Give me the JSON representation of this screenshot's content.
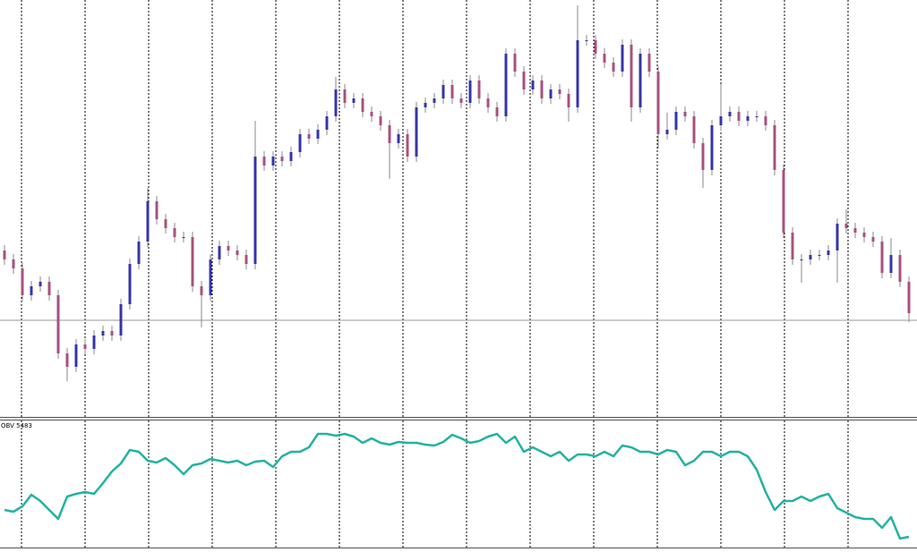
{
  "chart_data": [
    {
      "type": "candlestick",
      "xlim": [
        -0.5,
        101.9
      ],
      "xgrid": [
        1.9,
        9,
        16.1,
        23.2,
        30.3,
        37.4,
        44.5,
        51.6,
        58.7,
        65.8,
        72.9,
        80,
        87.1,
        94.2
      ],
      "ylim": [
        0,
        466
      ],
      "bid_line": 108,
      "up_color": "#3535a8",
      "down_color": "#a8507f",
      "wick_color": "#8a8a8a",
      "open": [
        186,
        176,
        166,
        136,
        146,
        151,
        136,
        71,
        56,
        81,
        76,
        91,
        96,
        91,
        126,
        171,
        196,
        241,
        221,
        211,
        201,
        201,
        146,
        136,
        176,
        191,
        186,
        181,
        171,
        291,
        281,
        291,
        286,
        296,
        316,
        311,
        321,
        336,
        366,
        351,
        356,
        341,
        336,
        326,
        306,
        316,
        291,
        346,
        351,
        356,
        371,
        356,
        351,
        376,
        356,
        346,
        336,
        406,
        386,
        366,
        376,
        356,
        366,
        361,
        346,
        421,
        421,
        406,
        396,
        386,
        416,
        346,
        406,
        386,
        316,
        321,
        341,
        336,
        306,
        276,
        326,
        336,
        341,
        331,
        336,
        336,
        326,
        276,
        206,
        176,
        176,
        181,
        181,
        186,
        216,
        211,
        206,
        201,
        196,
        161,
        181,
        151
      ],
      "high": [
        192,
        182,
        172,
        152,
        157,
        157,
        142,
        77,
        87,
        87,
        97,
        102,
        102,
        132,
        177,
        202,
        256,
        247,
        227,
        217,
        207,
        207,
        152,
        182,
        197,
        197,
        192,
        187,
        331,
        297,
        297,
        297,
        302,
        322,
        322,
        327,
        342,
        380,
        372,
        362,
        362,
        347,
        342,
        332,
        322,
        322,
        352,
        357,
        362,
        377,
        377,
        362,
        382,
        382,
        362,
        352,
        412,
        412,
        392,
        382,
        382,
        372,
        372,
        367,
        460,
        427,
        427,
        412,
        402,
        422,
        422,
        412,
        412,
        392,
        340,
        347,
        347,
        342,
        312,
        332,
        372,
        347,
        347,
        342,
        342,
        342,
        332,
        282,
        212,
        182,
        187,
        187,
        192,
        222,
        232,
        217,
        212,
        207,
        202,
        200,
        187,
        157
      ],
      "low": [
        170,
        160,
        130,
        130,
        140,
        130,
        65,
        40,
        50,
        70,
        70,
        85,
        85,
        85,
        120,
        165,
        190,
        215,
        205,
        195,
        195,
        140,
        100,
        130,
        170,
        180,
        175,
        165,
        165,
        275,
        275,
        280,
        280,
        290,
        305,
        305,
        315,
        330,
        345,
        345,
        335,
        330,
        320,
        266,
        300,
        285,
        285,
        340,
        345,
        350,
        350,
        345,
        345,
        350,
        340,
        330,
        330,
        380,
        360,
        360,
        350,
        350,
        355,
        330,
        340,
        415,
        400,
        390,
        380,
        380,
        330,
        340,
        380,
        300,
        310,
        315,
        330,
        300,
        256,
        270,
        320,
        330,
        325,
        325,
        330,
        320,
        270,
        200,
        170,
        150,
        170,
        175,
        175,
        150,
        205,
        200,
        195,
        190,
        155,
        155,
        145,
        106
      ],
      "close": [
        176,
        166,
        136,
        146,
        151,
        136,
        71,
        56,
        81,
        76,
        91,
        96,
        91,
        126,
        171,
        196,
        241,
        221,
        211,
        201,
        201,
        146,
        136,
        176,
        191,
        186,
        181,
        171,
        291,
        281,
        291,
        286,
        296,
        316,
        311,
        321,
        336,
        366,
        351,
        356,
        341,
        336,
        326,
        306,
        316,
        291,
        346,
        351,
        356,
        371,
        356,
        351,
        376,
        356,
        346,
        336,
        406,
        386,
        366,
        376,
        356,
        366,
        361,
        346,
        421,
        421,
        406,
        396,
        386,
        416,
        346,
        406,
        386,
        316,
        321,
        341,
        336,
        306,
        276,
        326,
        336,
        341,
        331,
        336,
        336,
        326,
        276,
        206,
        176,
        176,
        181,
        181,
        186,
        216,
        211,
        206,
        201,
        196,
        161,
        181,
        151,
        116
      ]
    },
    {
      "type": "line",
      "label": "OBV 5483",
      "color": "#22b2a2",
      "xlim": [
        -0.5,
        101.9
      ],
      "xgrid": [
        1.9,
        9,
        16.1,
        23.2,
        30.3,
        37.4,
        44.5,
        51.6,
        58.7,
        65.8,
        72.9,
        80,
        87.1,
        94.2
      ],
      "ylim": [
        0,
        142
      ],
      "values": [
        42,
        40,
        46,
        59,
        52,
        42,
        32,
        57,
        60,
        62,
        60,
        72,
        85,
        94,
        109,
        107,
        97,
        95,
        100,
        92,
        82,
        92,
        94,
        99,
        97,
        95,
        97,
        92,
        96,
        97,
        90,
        102,
        107,
        107,
        112,
        127,
        127,
        125,
        127,
        124,
        117,
        122,
        117,
        115,
        118,
        117,
        117,
        115,
        114,
        118,
        126,
        122,
        117,
        119,
        124,
        127,
        117,
        124,
        107,
        112,
        107,
        102,
        107,
        97,
        104,
        104,
        102,
        107,
        102,
        114,
        112,
        107,
        107,
        104,
        109,
        107,
        92,
        97,
        107,
        107,
        102,
        107,
        107,
        102,
        87,
        62,
        42,
        52,
        52,
        57,
        52,
        57,
        60,
        44,
        39,
        34,
        32,
        32,
        22,
        34,
        10,
        12
      ]
    }
  ]
}
